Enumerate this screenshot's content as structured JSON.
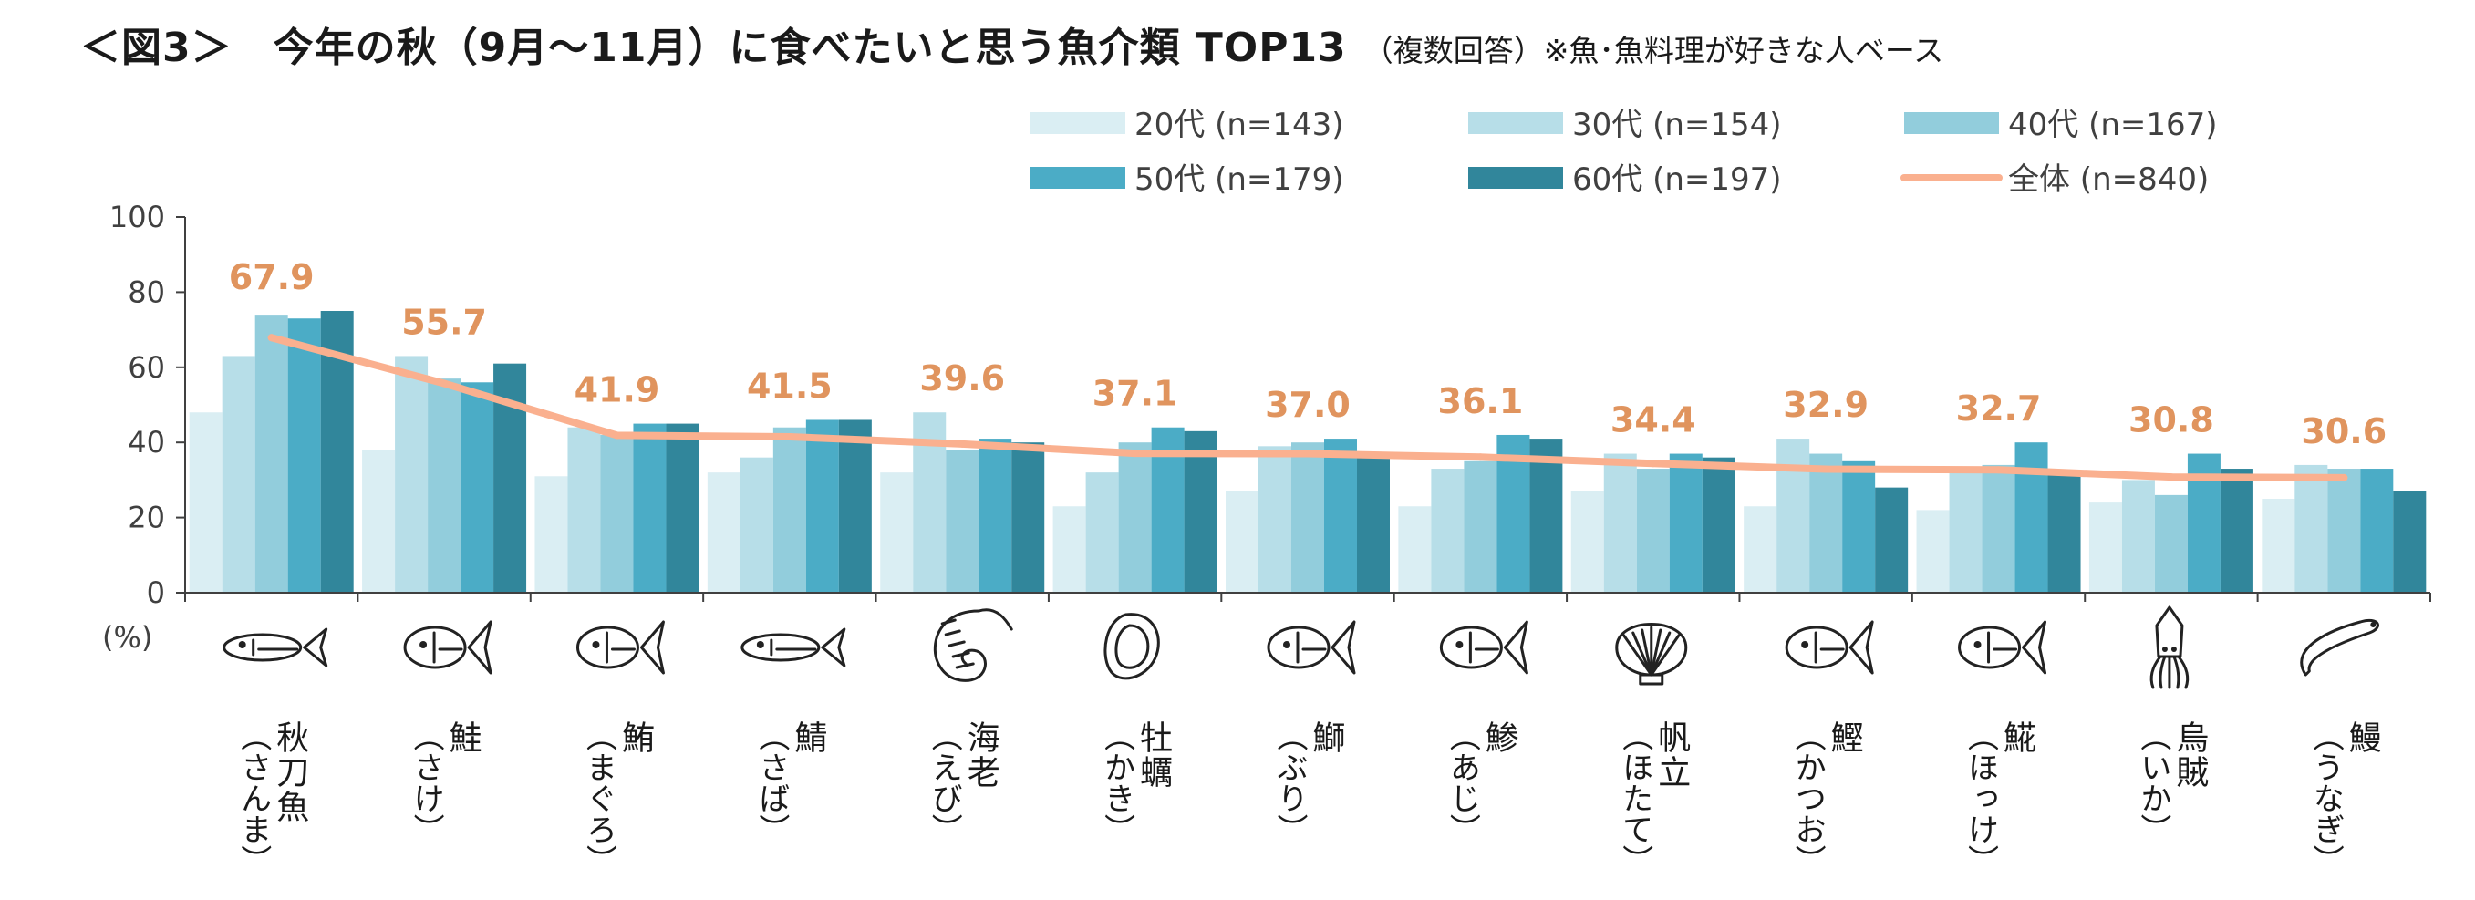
{
  "header": {
    "title": "＜図3＞　今年の秋（9月～11月）に食べたいと思う魚介類 TOP13",
    "note": "（複数回答）※魚･魚料理が好きな人ベース"
  },
  "colors": {
    "s20": "#daeef3",
    "s30": "#b7dee8",
    "s40": "#92cddc",
    "s50": "#4bacc6",
    "s60": "#31869b",
    "total_line": "#fab08f",
    "total_label": "#e0945e",
    "axis": "#404040"
  },
  "chart_data": {
    "type": "bar",
    "title": "＜図3＞　今年の秋（9月～11月）に食べたいと思う魚介類 TOP13",
    "yunit": "(%)",
    "ylim": [
      0,
      100
    ],
    "yticks": [
      "0",
      "20",
      "40",
      "60",
      "80",
      "100"
    ],
    "legend_position": "top-right",
    "categories": [
      {
        "name": "秋刀魚",
        "reading": "（さんま）",
        "icon": "saury-icon"
      },
      {
        "name": "鮭",
        "reading": "（さけ）",
        "icon": "salmon-icon"
      },
      {
        "name": "鮪",
        "reading": "（まぐろ）",
        "icon": "tuna-icon"
      },
      {
        "name": "鯖",
        "reading": "（さば）",
        "icon": "mackerel-icon"
      },
      {
        "name": "海老",
        "reading": "（えび）",
        "icon": "shrimp-icon"
      },
      {
        "name": "牡蠣",
        "reading": "（かき）",
        "icon": "oyster-icon"
      },
      {
        "name": "鰤",
        "reading": "（ぶり）",
        "icon": "yellowtail-icon"
      },
      {
        "name": "鯵",
        "reading": "（あじ）",
        "icon": "horse-mackerel-icon"
      },
      {
        "name": "帆立",
        "reading": "（ほたて）",
        "icon": "scallop-icon"
      },
      {
        "name": "鰹",
        "reading": "（かつお）",
        "icon": "bonito-icon"
      },
      {
        "name": "𩸽",
        "reading": "（ほっけ）",
        "icon": "atka-mackerel-icon"
      },
      {
        "name": "烏賊",
        "reading": "（いか）",
        "icon": "squid-icon"
      },
      {
        "name": "鰻",
        "reading": "（うなぎ）",
        "icon": "eel-icon"
      }
    ],
    "series": [
      {
        "key": "s20",
        "name": "20代 (n=143)",
        "values": [
          48,
          38,
          31,
          32,
          32,
          23,
          27,
          23,
          27,
          23,
          22,
          24,
          25
        ]
      },
      {
        "key": "s30",
        "name": "30代 (n=154)",
        "values": [
          63,
          63,
          44,
          36,
          48,
          32,
          39,
          33,
          37,
          41,
          33,
          30,
          34
        ]
      },
      {
        "key": "s40",
        "name": "40代 (n=167)",
        "values": [
          74,
          57,
          42,
          44,
          38,
          40,
          40,
          35,
          33,
          37,
          34,
          26,
          33
        ]
      },
      {
        "key": "s50",
        "name": "50代 (n=179)",
        "values": [
          73,
          56,
          45,
          46,
          41,
          44,
          41,
          42,
          37,
          35,
          40,
          37,
          33
        ]
      },
      {
        "key": "s60",
        "name": "60代 (n=197)",
        "values": [
          75,
          61,
          45,
          46,
          40,
          43,
          36,
          41,
          36,
          28,
          32,
          33,
          27
        ]
      }
    ],
    "total": {
      "name": "全体 (n=840)",
      "values": [
        67.9,
        55.7,
        41.9,
        41.5,
        39.6,
        37.1,
        37.0,
        36.1,
        34.4,
        32.9,
        32.7,
        30.8,
        30.6
      ],
      "labels": [
        "67.9",
        "55.7",
        "41.9",
        "41.5",
        "39.6",
        "37.1",
        "37.0",
        "36.1",
        "34.4",
        "32.9",
        "32.7",
        "30.8",
        "30.6"
      ]
    }
  }
}
